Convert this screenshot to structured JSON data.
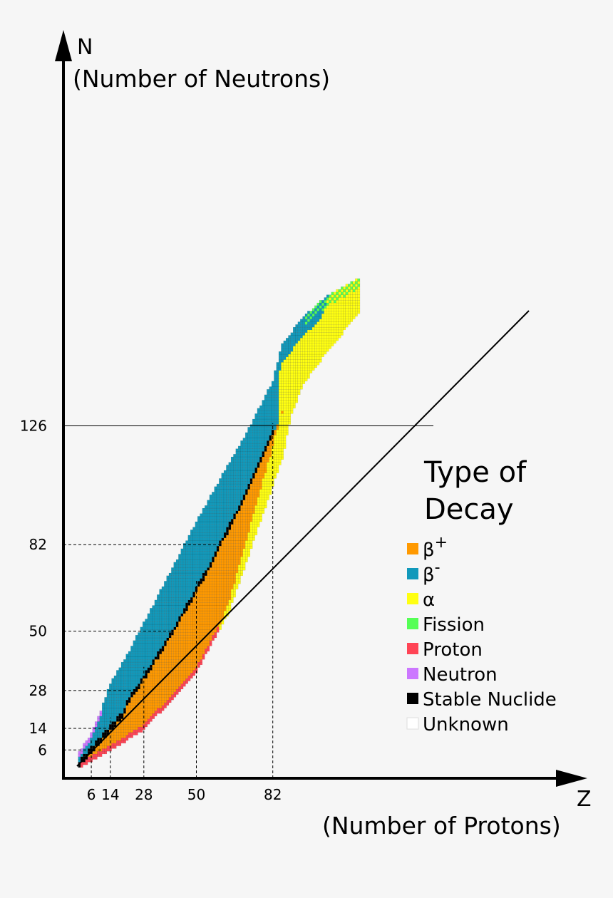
{
  "chart_data": {
    "type": "heatmap",
    "xlabel_symbol": "Z",
    "xlabel": "(Number of Protons)",
    "ylabel_symbol": "N",
    "ylabel": "(Number of Neutrons)",
    "x_magic_ticks": [
      6,
      14,
      28,
      50,
      82
    ],
    "y_magic_ticks": [
      6,
      14,
      28,
      50,
      82,
      126
    ],
    "x_range": [
      0,
      120
    ],
    "y_range": [
      0,
      180
    ],
    "legend_title_line1": "Type of",
    "legend_title_line2": "Decay",
    "legend": [
      {
        "label": "β+",
        "base": "β",
        "sup": "+",
        "color": "#ff9900"
      },
      {
        "label": "β-",
        "base": "β",
        "sup": "-",
        "color": "#1199bb"
      },
      {
        "label": "α",
        "base": "α",
        "sup": "",
        "color": "#ffff11"
      },
      {
        "label": "Fission",
        "base": "Fission",
        "sup": "",
        "color": "#55ff55"
      },
      {
        "label": "Proton",
        "base": "Proton",
        "sup": "",
        "color": "#ff4455"
      },
      {
        "label": "Neutron",
        "base": "Neutron",
        "sup": "",
        "color": "#cc77ff"
      },
      {
        "label": "Stable Nuclide",
        "base": "Stable Nuclide",
        "sup": "",
        "color": "#000000"
      },
      {
        "label": "Unknown",
        "base": "Unknown",
        "sup": "",
        "color": "#ffffff"
      }
    ],
    "grid": true,
    "legend_position": "right"
  }
}
